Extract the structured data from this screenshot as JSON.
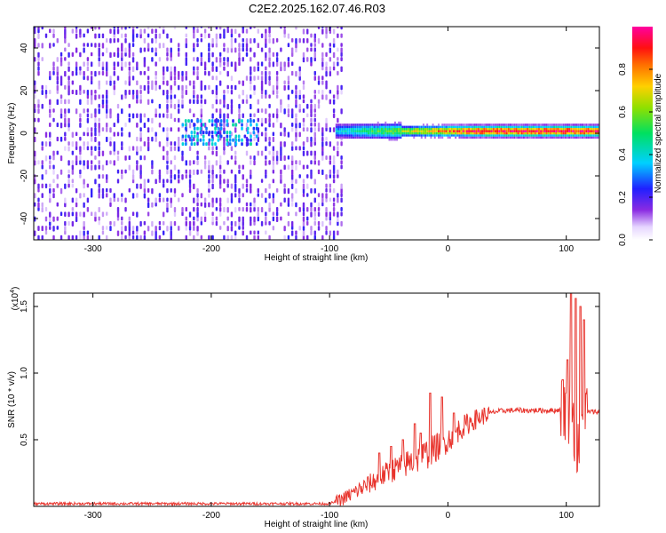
{
  "title": "C2E2.2025.162.07.46.R03",
  "chart_data": [
    {
      "type": "heatmap",
      "xlabel": "Height of straight line (km)",
      "ylabel": "Frequency (Hz)",
      "xlim": [
        -350,
        128
      ],
      "ylim": [
        -50,
        50
      ],
      "x_ticks": [
        -300,
        -200,
        -100,
        0,
        100
      ],
      "x_tick_labels": [
        "-300",
        "-200",
        "-100",
        "0",
        "100"
      ],
      "y_ticks": [
        -40,
        -20,
        0,
        20,
        40
      ],
      "y_tick_labels": [
        "-40",
        "-20",
        "0",
        "20",
        "40"
      ],
      "colorbar": {
        "label": "Normalized spectral amplitude",
        "range": [
          0,
          1
        ],
        "ticks": [
          0.0,
          0.2,
          0.4,
          0.6,
          0.8
        ],
        "tick_labels": [
          "0.0",
          "0.2",
          "0.4",
          "0.6",
          "0.8"
        ],
        "colormap": "rainbow (white to violet, blue, cyan, green, yellow, orange, red, magenta)"
      },
      "features": [
        {
          "description": "scattered violet noise covering all frequencies",
          "x_range": [
            -350,
            -88
          ],
          "amplitude": 0.15
        },
        {
          "description": "blue/cyan blob near 0 Hz",
          "x_range": [
            -225,
            -160
          ],
          "y_center": 0,
          "amplitude": 0.35
        },
        {
          "description": "signal line near 0 Hz, growing brighter",
          "x_range": [
            -95,
            128
          ],
          "y_center": 0.5,
          "amplitude_start": 0.35,
          "amplitude_end": 0.95
        }
      ]
    },
    {
      "type": "line",
      "xlabel": "Height of straight line (km)",
      "ylabel": "SNR (10 * v/v)",
      "y_multiplier_label": "(x10",
      "y_multiplier_exp": "4",
      "y_multiplier_close": ")",
      "xlim": [
        -350,
        128
      ],
      "ylim": [
        0,
        1.6
      ],
      "x_ticks": [
        -300,
        -200,
        -100,
        0,
        100
      ],
      "x_tick_labels": [
        "-300",
        "-200",
        "-100",
        "0",
        "100"
      ],
      "y_ticks": [
        0.5,
        1.0,
        1.5
      ],
      "y_tick_labels": [
        "0.5",
        "1.0",
        "1.5"
      ],
      "line_color": "#e8352e",
      "series": [
        {
          "x": [
            -350,
            -300,
            -250,
            -200,
            -150,
            -110,
            -100,
            -90,
            -80,
            -70,
            -60,
            -50,
            -40,
            -30,
            -20,
            -10,
            0,
            10,
            20,
            30,
            40,
            50,
            60,
            70,
            80,
            90,
            100,
            103,
            106,
            110,
            113,
            116,
            120,
            128
          ],
          "values": [
            0.02,
            0.02,
            0.02,
            0.02,
            0.02,
            0.02,
            0.02,
            0.05,
            0.1,
            0.15,
            0.2,
            0.26,
            0.3,
            0.34,
            0.38,
            0.44,
            0.5,
            0.58,
            0.64,
            0.68,
            0.71,
            0.72,
            0.72,
            0.72,
            0.72,
            0.72,
            0.73,
            0.7,
            0.6,
            0.4,
            0.55,
            0.7,
            0.71,
            0.71
          ],
          "spikes": [
            {
              "x": -58,
              "y": 0.4
            },
            {
              "x": -48,
              "y": 0.45
            },
            {
              "x": -38,
              "y": 0.5
            },
            {
              "x": -28,
              "y": 0.62
            },
            {
              "x": -23,
              "y": 0.55
            },
            {
              "x": -15,
              "y": 0.85
            },
            {
              "x": -5,
              "y": 0.82
            },
            {
              "x": 5,
              "y": 0.7
            },
            {
              "x": 97,
              "y": 0.95
            },
            {
              "x": 101,
              "y": 1.1
            },
            {
              "x": 104,
              "y": 1.6
            },
            {
              "x": 108,
              "y": 1.56
            },
            {
              "x": 112,
              "y": 1.5
            },
            {
              "x": 115,
              "y": 1.4
            }
          ]
        }
      ]
    }
  ]
}
